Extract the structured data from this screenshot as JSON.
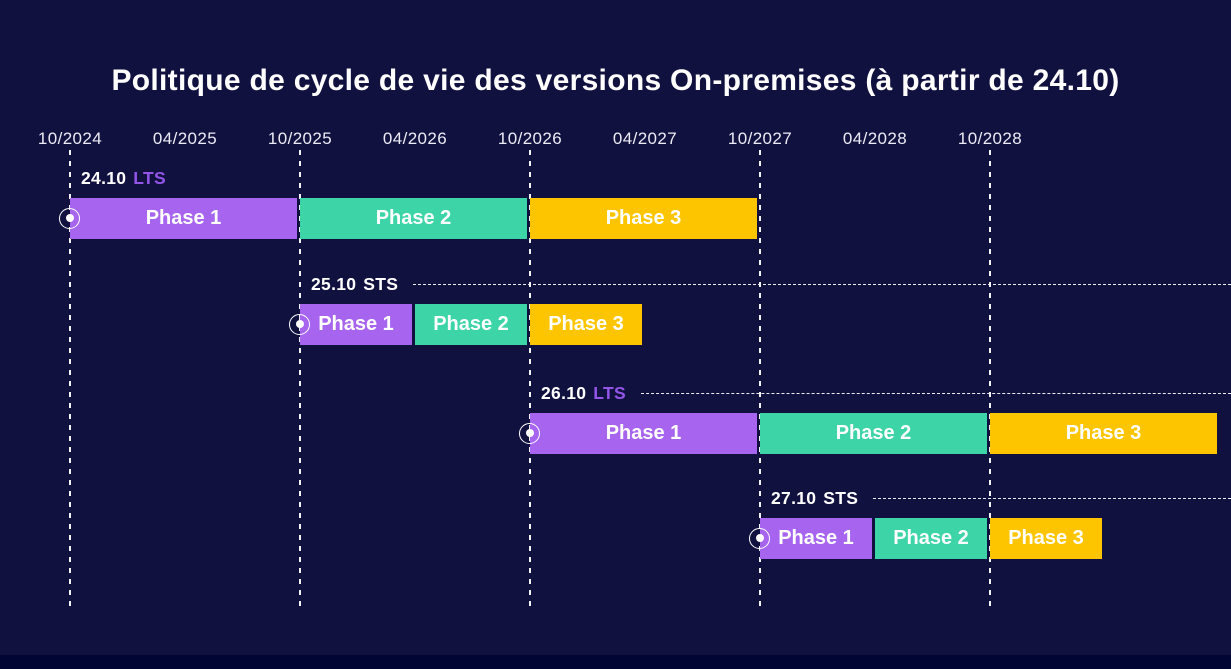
{
  "page": {
    "title": "Politique de cycle de vie des versions On-premises (à partir de 24.10)"
  },
  "colors": {
    "background": "#111140",
    "bottom_strip": "#000534",
    "phase1_purple": "#a765ef",
    "phase2_teal": "#3dd4a7",
    "phase3_yellow": "#fdc500",
    "lts_accent": "#9355e8",
    "sts_text": "#ffffff",
    "text_white": "#ffffff",
    "axis_text": "#ecebf5",
    "guide_lines": "#ffffff"
  },
  "chart_data": {
    "type": "bar",
    "subtype": "gantt-release-lifecycle-timeline",
    "title": "Politique de cycle de vie des versions On-premises (à partir de 24.10)",
    "x_axis": {
      "ticks": [
        "10/2024",
        "04/2025",
        "10/2025",
        "04/2026",
        "10/2026",
        "04/2027",
        "10/2027",
        "04/2028",
        "10/2028"
      ],
      "gridlines_at": [
        "10/2024",
        "10/2025",
        "10/2026",
        "10/2027",
        "10/2028"
      ],
      "range": [
        "10/2024",
        "10/2029"
      ],
      "grid": "vertical-dashed"
    },
    "phase_names": [
      "Phase 1",
      "Phase 2",
      "Phase 3"
    ],
    "rows": [
      {
        "version": "24.10",
        "type": "LTS",
        "trailing_dash": false,
        "phases": [
          {
            "label": "Phase 1",
            "start": "10/2024",
            "end": "10/2025"
          },
          {
            "label": "Phase 2",
            "start": "10/2025",
            "end": "10/2026"
          },
          {
            "label": "Phase 3",
            "start": "10/2026",
            "end": "10/2027"
          }
        ]
      },
      {
        "version": "25.10",
        "type": "STS",
        "trailing_dash": true,
        "phases": [
          {
            "label": "Phase 1",
            "start": "10/2025",
            "end": "04/2026"
          },
          {
            "label": "Phase 2",
            "start": "04/2026",
            "end": "10/2026"
          },
          {
            "label": "Phase 3",
            "start": "10/2026",
            "end": "04/2027"
          }
        ]
      },
      {
        "version": "26.10",
        "type": "LTS",
        "trailing_dash": true,
        "phases": [
          {
            "label": "Phase 1",
            "start": "10/2026",
            "end": "10/2027"
          },
          {
            "label": "Phase 2",
            "start": "10/2027",
            "end": "10/2028"
          },
          {
            "label": "Phase 3",
            "start": "10/2028",
            "end": "10/2029"
          }
        ]
      },
      {
        "version": "27.10",
        "type": "STS",
        "trailing_dash": true,
        "phases": [
          {
            "label": "Phase 1",
            "start": "10/2027",
            "end": "04/2028"
          },
          {
            "label": "Phase 2",
            "start": "04/2028",
            "end": "10/2028"
          },
          {
            "label": "Phase 3",
            "start": "10/2028",
            "end": "04/2029"
          }
        ]
      }
    ]
  }
}
